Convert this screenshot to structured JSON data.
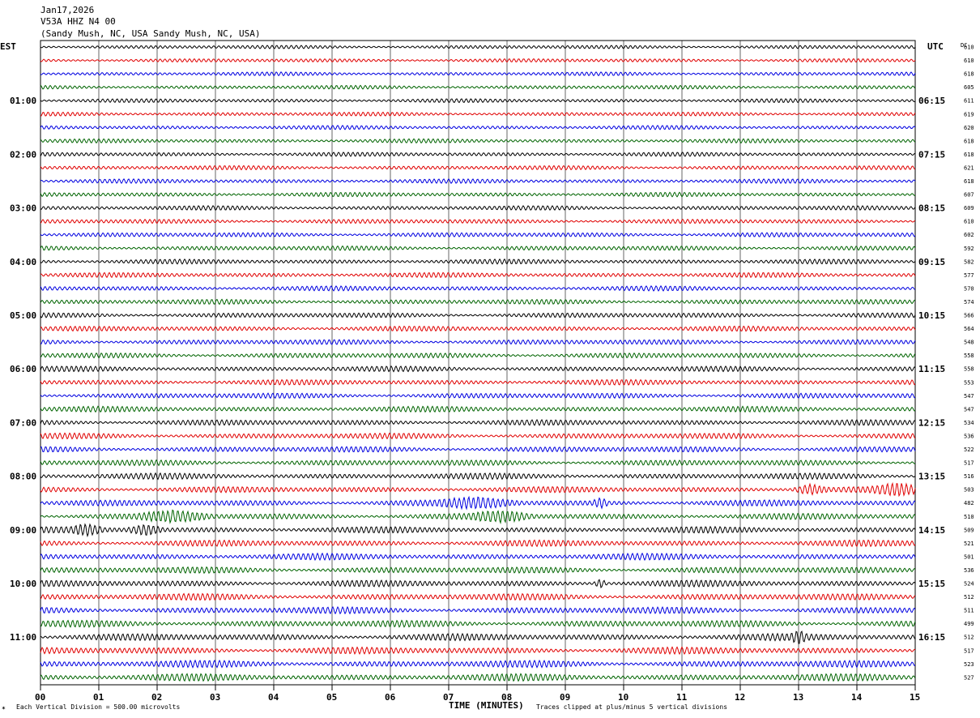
{
  "header": {
    "date": "Jan17,2026",
    "station": "V53A HHZ N4 00",
    "location": "(Sandy Mush, NC, USA Sandy Mush, NC, USA)"
  },
  "chart_data": {
    "type": "line",
    "left_zone": "EST",
    "right_zone": "UTC",
    "dc_label": "DC",
    "xlabel": "TIME (MINUTES)",
    "x_ticks": [
      "00",
      "01",
      "02",
      "03",
      "04",
      "05",
      "06",
      "07",
      "08",
      "09",
      "10",
      "11",
      "12",
      "13",
      "14",
      "15"
    ],
    "xlim": [
      0,
      15
    ],
    "left_hour_labels": [
      "01:00",
      "02:00",
      "03:00",
      "04:00",
      "05:00",
      "06:00",
      "07:00",
      "08:00",
      "09:00",
      "10:00",
      "11:00"
    ],
    "right_hour_labels": [
      "06:15",
      "07:15",
      "08:15",
      "09:15",
      "10:15",
      "11:15",
      "12:15",
      "13:15",
      "14:15",
      "15:15",
      "16:15"
    ],
    "trace_colors": [
      "#000000",
      "#e00000",
      "#0000e0",
      "#006400"
    ],
    "dc_offsets": [
      "610",
      "610",
      "618",
      "605",
      "611",
      "619",
      "620",
      "618",
      "618",
      "621",
      "618",
      "607",
      "609",
      "610",
      "602",
      "592",
      "582",
      "577",
      "570",
      "574",
      "566",
      "564",
      "548",
      "558",
      "558",
      "553",
      "547",
      "547",
      "534",
      "536",
      "522",
      "517",
      "516",
      "503",
      "482",
      "510",
      "509",
      "521",
      "501",
      "536",
      "524",
      "512",
      "511",
      "499",
      "512",
      "517",
      "523",
      "527"
    ],
    "events": [
      {
        "trace": 33,
        "minute": 13.2,
        "width": 0.35
      },
      {
        "trace": 33,
        "minute": 14.7,
        "width": 0.5
      },
      {
        "trace": 34,
        "minute": 7.5,
        "width": 0.8
      },
      {
        "trace": 34,
        "minute": 9.6,
        "width": 0.15
      },
      {
        "trace": 35,
        "minute": 2.3,
        "width": 0.7
      },
      {
        "trace": 35,
        "minute": 7.9,
        "width": 0.6
      },
      {
        "trace": 36,
        "minute": 0.8,
        "width": 0.3
      },
      {
        "trace": 36,
        "minute": 1.8,
        "width": 0.35
      },
      {
        "trace": 40,
        "minute": 9.6,
        "width": 0.12
      },
      {
        "trace": 44,
        "minute": 13.0,
        "width": 0.15
      }
    ]
  },
  "footer": {
    "scale_note": "Each Vertical Division =  500.00 microvolts",
    "clip_note": "Traces clipped at plus/minus 5 vertical divisions"
  }
}
